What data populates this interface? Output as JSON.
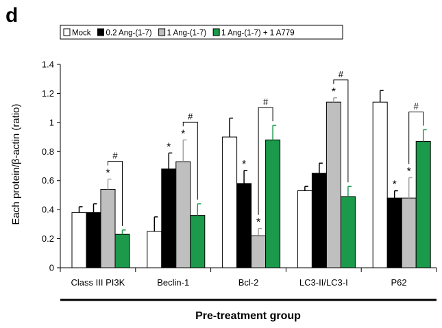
{
  "panel_label": "d",
  "chart_data": {
    "type": "bar",
    "title": "",
    "ylabel": "Each protein/β-actin (ratio)",
    "xlabel": "Pre-treatment group",
    "ylim": [
      0,
      1.4
    ],
    "yticks": [
      "0",
      "0.2",
      "0.4",
      "0.6",
      "0.8",
      "1",
      "1.2",
      "1.4"
    ],
    "legend_position": "top",
    "categories": [
      "Class III PI3K",
      "Beclin-1",
      "Bcl-2",
      "LC3-II/LC3-I",
      "P62"
    ],
    "series": [
      {
        "name": "Mock",
        "color": "#ffffff",
        "values": [
          0.38,
          0.25,
          0.9,
          0.53,
          1.14
        ],
        "errors": [
          0.04,
          0.1,
          0.13,
          0.03,
          0.08
        ]
      },
      {
        "name": "0.2 Ang-(1-7)",
        "color": "#000000",
        "values": [
          0.38,
          0.68,
          0.58,
          0.65,
          0.48
        ],
        "errors": [
          0.06,
          0.11,
          0.09,
          0.07,
          0.05
        ]
      },
      {
        "name": "1 Ang-(1-7)",
        "color": "#bfbfbf",
        "values": [
          0.54,
          0.73,
          0.22,
          1.14,
          0.48
        ],
        "errors": [
          0.07,
          0.15,
          0.05,
          0.03,
          0.14
        ]
      },
      {
        "name": "1 Ang-(1-7) + 1 A779",
        "color": "#1a9a4a",
        "values": [
          0.23,
          0.36,
          0.88,
          0.49,
          0.87
        ],
        "errors": [
          0.03,
          0.08,
          0.1,
          0.07,
          0.08
        ]
      }
    ],
    "significance": {
      "star": "*",
      "hash": "#",
      "star_marks": [
        [
          0,
          2
        ],
        [
          1,
          1
        ],
        [
          1,
          2
        ],
        [
          2,
          1
        ],
        [
          2,
          2
        ],
        [
          3,
          2
        ],
        [
          4,
          1
        ],
        [
          4,
          2
        ]
      ],
      "hash_brackets": [
        [
          0,
          2,
          3
        ],
        [
          1,
          2,
          3
        ],
        [
          2,
          2,
          3
        ],
        [
          3,
          2,
          3
        ],
        [
          4,
          2,
          3
        ]
      ]
    }
  }
}
